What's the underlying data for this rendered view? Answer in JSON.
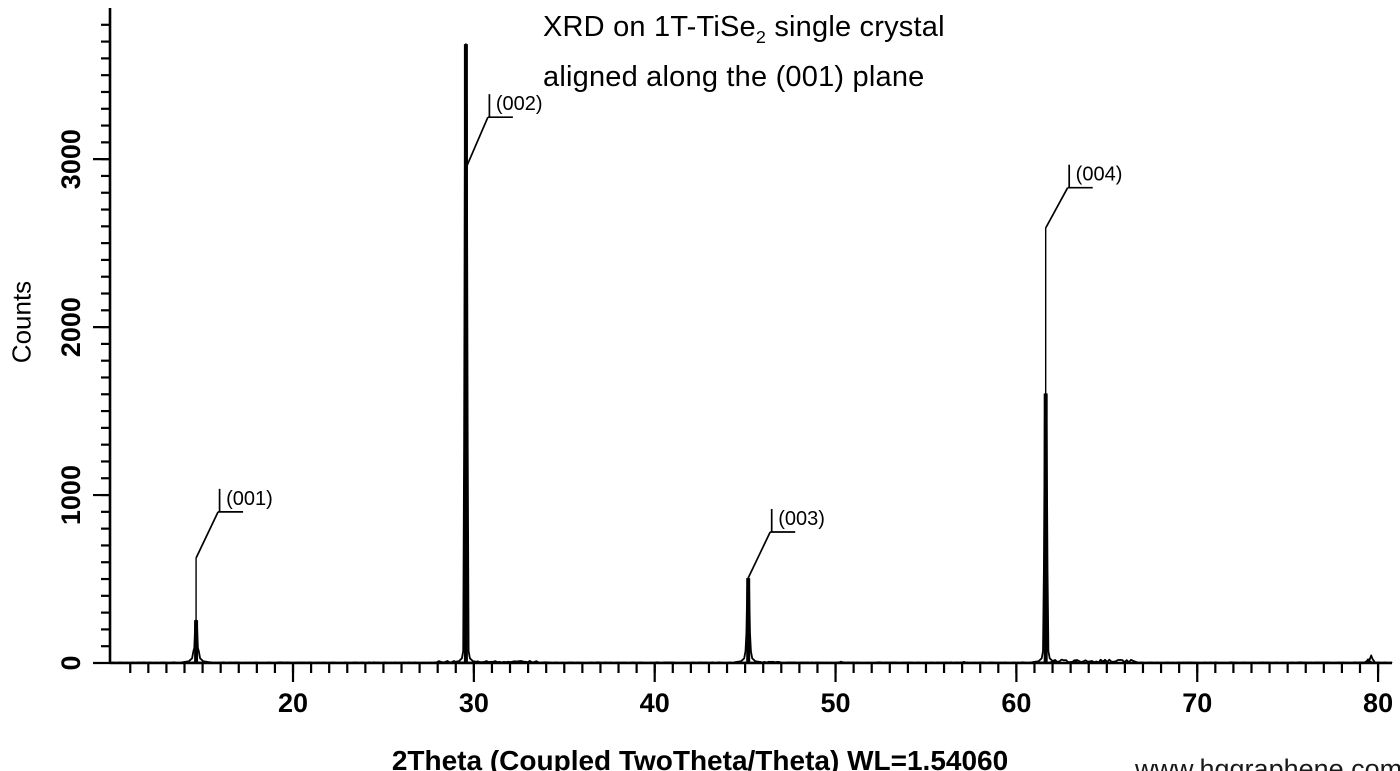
{
  "title": {
    "line1_pre": "XRD on 1T-TiSe",
    "line1_sub": "2",
    "line1_post": " single crystal",
    "line2": "aligned along the (001) plane"
  },
  "watermark": "www.hqgraphene.com",
  "chart_data": {
    "type": "line",
    "title": "XRD on 1T-TiSe2 single crystal aligned along the (001) plane",
    "xlabel": "2Theta (Coupled TwoTheta/Theta) WL=1.54060",
    "ylabel": "Counts",
    "legend": "none",
    "grid": false,
    "x_axis": {
      "min": 9.88,
      "max": 80.77,
      "major_ticks": [
        20,
        30,
        40,
        50,
        60,
        70,
        80
      ],
      "minor_step": 1
    },
    "y_axis": {
      "min": 0,
      "max": 3900,
      "major_ticks": [
        0,
        1000,
        2000,
        3000
      ],
      "minor_step": 100
    },
    "peaks": [
      {
        "label": "(001)",
        "two_theta": 14.64,
        "counts": 255,
        "marker_counts": 625,
        "attach_counts": 625,
        "elbow_counts": 900
      },
      {
        "label": "(002)",
        "two_theta": 29.56,
        "counts": 3685,
        "marker_counts": 3685,
        "attach_counts": 2946,
        "elbow_counts": 3250
      },
      {
        "label": "(003)",
        "two_theta": 45.17,
        "counts": 505,
        "marker_counts": 505,
        "attach_counts": 506,
        "elbow_counts": 780
      },
      {
        "label": "(004)",
        "two_theta": 61.62,
        "counts": 1605,
        "marker_counts": 2590,
        "attach_counts": 2590,
        "elbow_counts": 2830
      }
    ],
    "minor_features": [
      {
        "two_theta": 50.3,
        "counts": 8
      },
      {
        "two_theta": 57.1,
        "counts": 7
      },
      {
        "two_theta": 63.2,
        "counts": 16
      },
      {
        "two_theta": 64.8,
        "counts": 12
      },
      {
        "two_theta": 79.45,
        "counts": 22
      },
      {
        "two_theta": 79.62,
        "counts": 45
      }
    ],
    "noise_zones": [
      {
        "from": 28.0,
        "to": 29.3,
        "amp": 10
      },
      {
        "from": 30.0,
        "to": 33.5,
        "amp": 10
      },
      {
        "from": 45.6,
        "to": 47.0,
        "amp": 6
      },
      {
        "from": 61.9,
        "to": 66.6,
        "amp": 18
      }
    ],
    "baseline_counts": 2
  }
}
